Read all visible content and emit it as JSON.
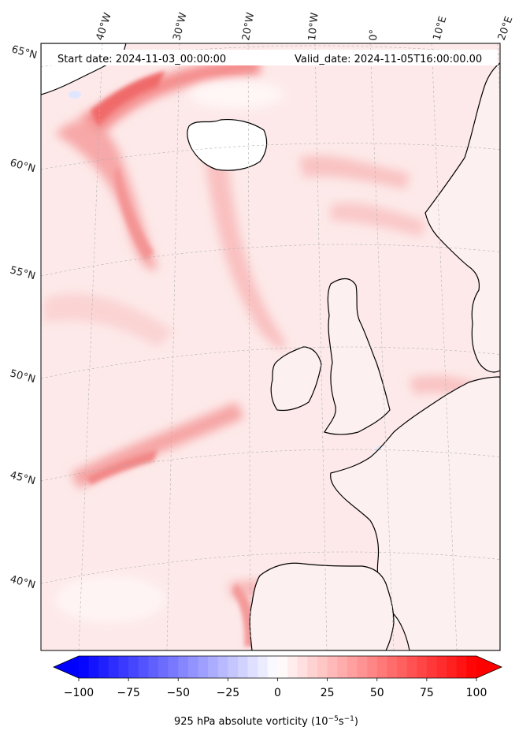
{
  "header": {
    "start_date": "Start date: 2024-11-03_00:00:00",
    "valid_date": "Valid_date: 2024-11-05T16:00:00.00"
  },
  "longitude_labels": [
    "40°W",
    "30°W",
    "20°W",
    "10°W",
    "0°",
    "10°E",
    "20°E"
  ],
  "latitude_labels": [
    "65°N",
    "60°N",
    "55°N",
    "50°N",
    "45°N",
    "40°N"
  ],
  "colorbar": {
    "label_main": "925 hPa absolute vorticity (10",
    "label_sup1": "−5",
    "label_mid": "s",
    "label_sup2": "−1",
    "label_end": ")",
    "ticks": [
      "−100",
      "−75",
      "−50",
      "−25",
      "0",
      "25",
      "50",
      "75",
      "100"
    ],
    "min": -100,
    "max": 100,
    "step": 5,
    "colormap": "bwr",
    "extend": "both"
  },
  "colors": {
    "land_outline": "#000000",
    "gridline": "#b0b0b0",
    "negative_end": "#0000ff",
    "positive_end": "#ff0000",
    "neutral": "#ffffff"
  }
}
